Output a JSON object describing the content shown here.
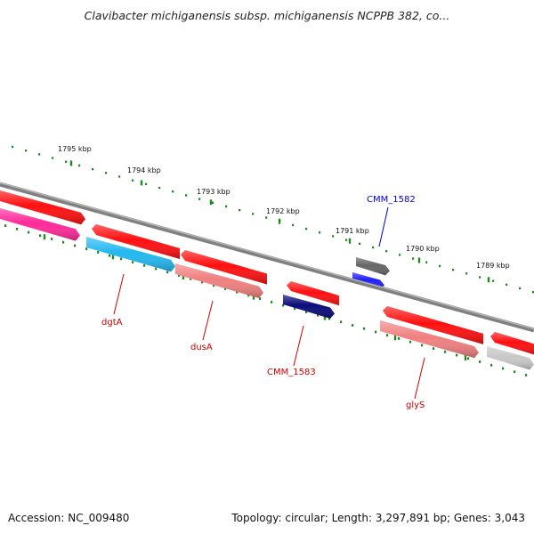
{
  "title": "Clavibacter michiganensis subsp. michiganensis NCPPB 382, co...",
  "footer": {
    "accession": "Accession: NC_009480",
    "summary": "Topology: circular; Length: 3,297,891 bp; Genes: 3,043"
  },
  "colors": {
    "backbone": "#808080",
    "tick": "#1e8a1e",
    "label_red": "#cc0000",
    "label_blue": "#0000cc"
  },
  "ruler": [
    "1795 kbp",
    "1794 kbp",
    "1793 kbp",
    "1792 kbp",
    "1791 kbp",
    "1790 kbp",
    "1789 kbp"
  ],
  "features": [
    {
      "name": "dgtA",
      "color": "#ff0000"
    },
    {
      "name": "dusA",
      "color": "#ff0000"
    },
    {
      "name": "CMM_1583",
      "color": "#ff0000"
    },
    {
      "name": "CMM_1582",
      "color": "#666666"
    },
    {
      "name": "glyS",
      "color": "#ff0000"
    }
  ],
  "gene_labels": [
    {
      "text": "dgtA",
      "color": "#cc0000"
    },
    {
      "text": "dusA",
      "color": "#cc0000"
    },
    {
      "text": "CMM_1583",
      "color": "#cc0000"
    },
    {
      "text": "CMM_1582",
      "color": "#0000cc"
    },
    {
      "text": "glyS",
      "color": "#cc0000"
    }
  ]
}
